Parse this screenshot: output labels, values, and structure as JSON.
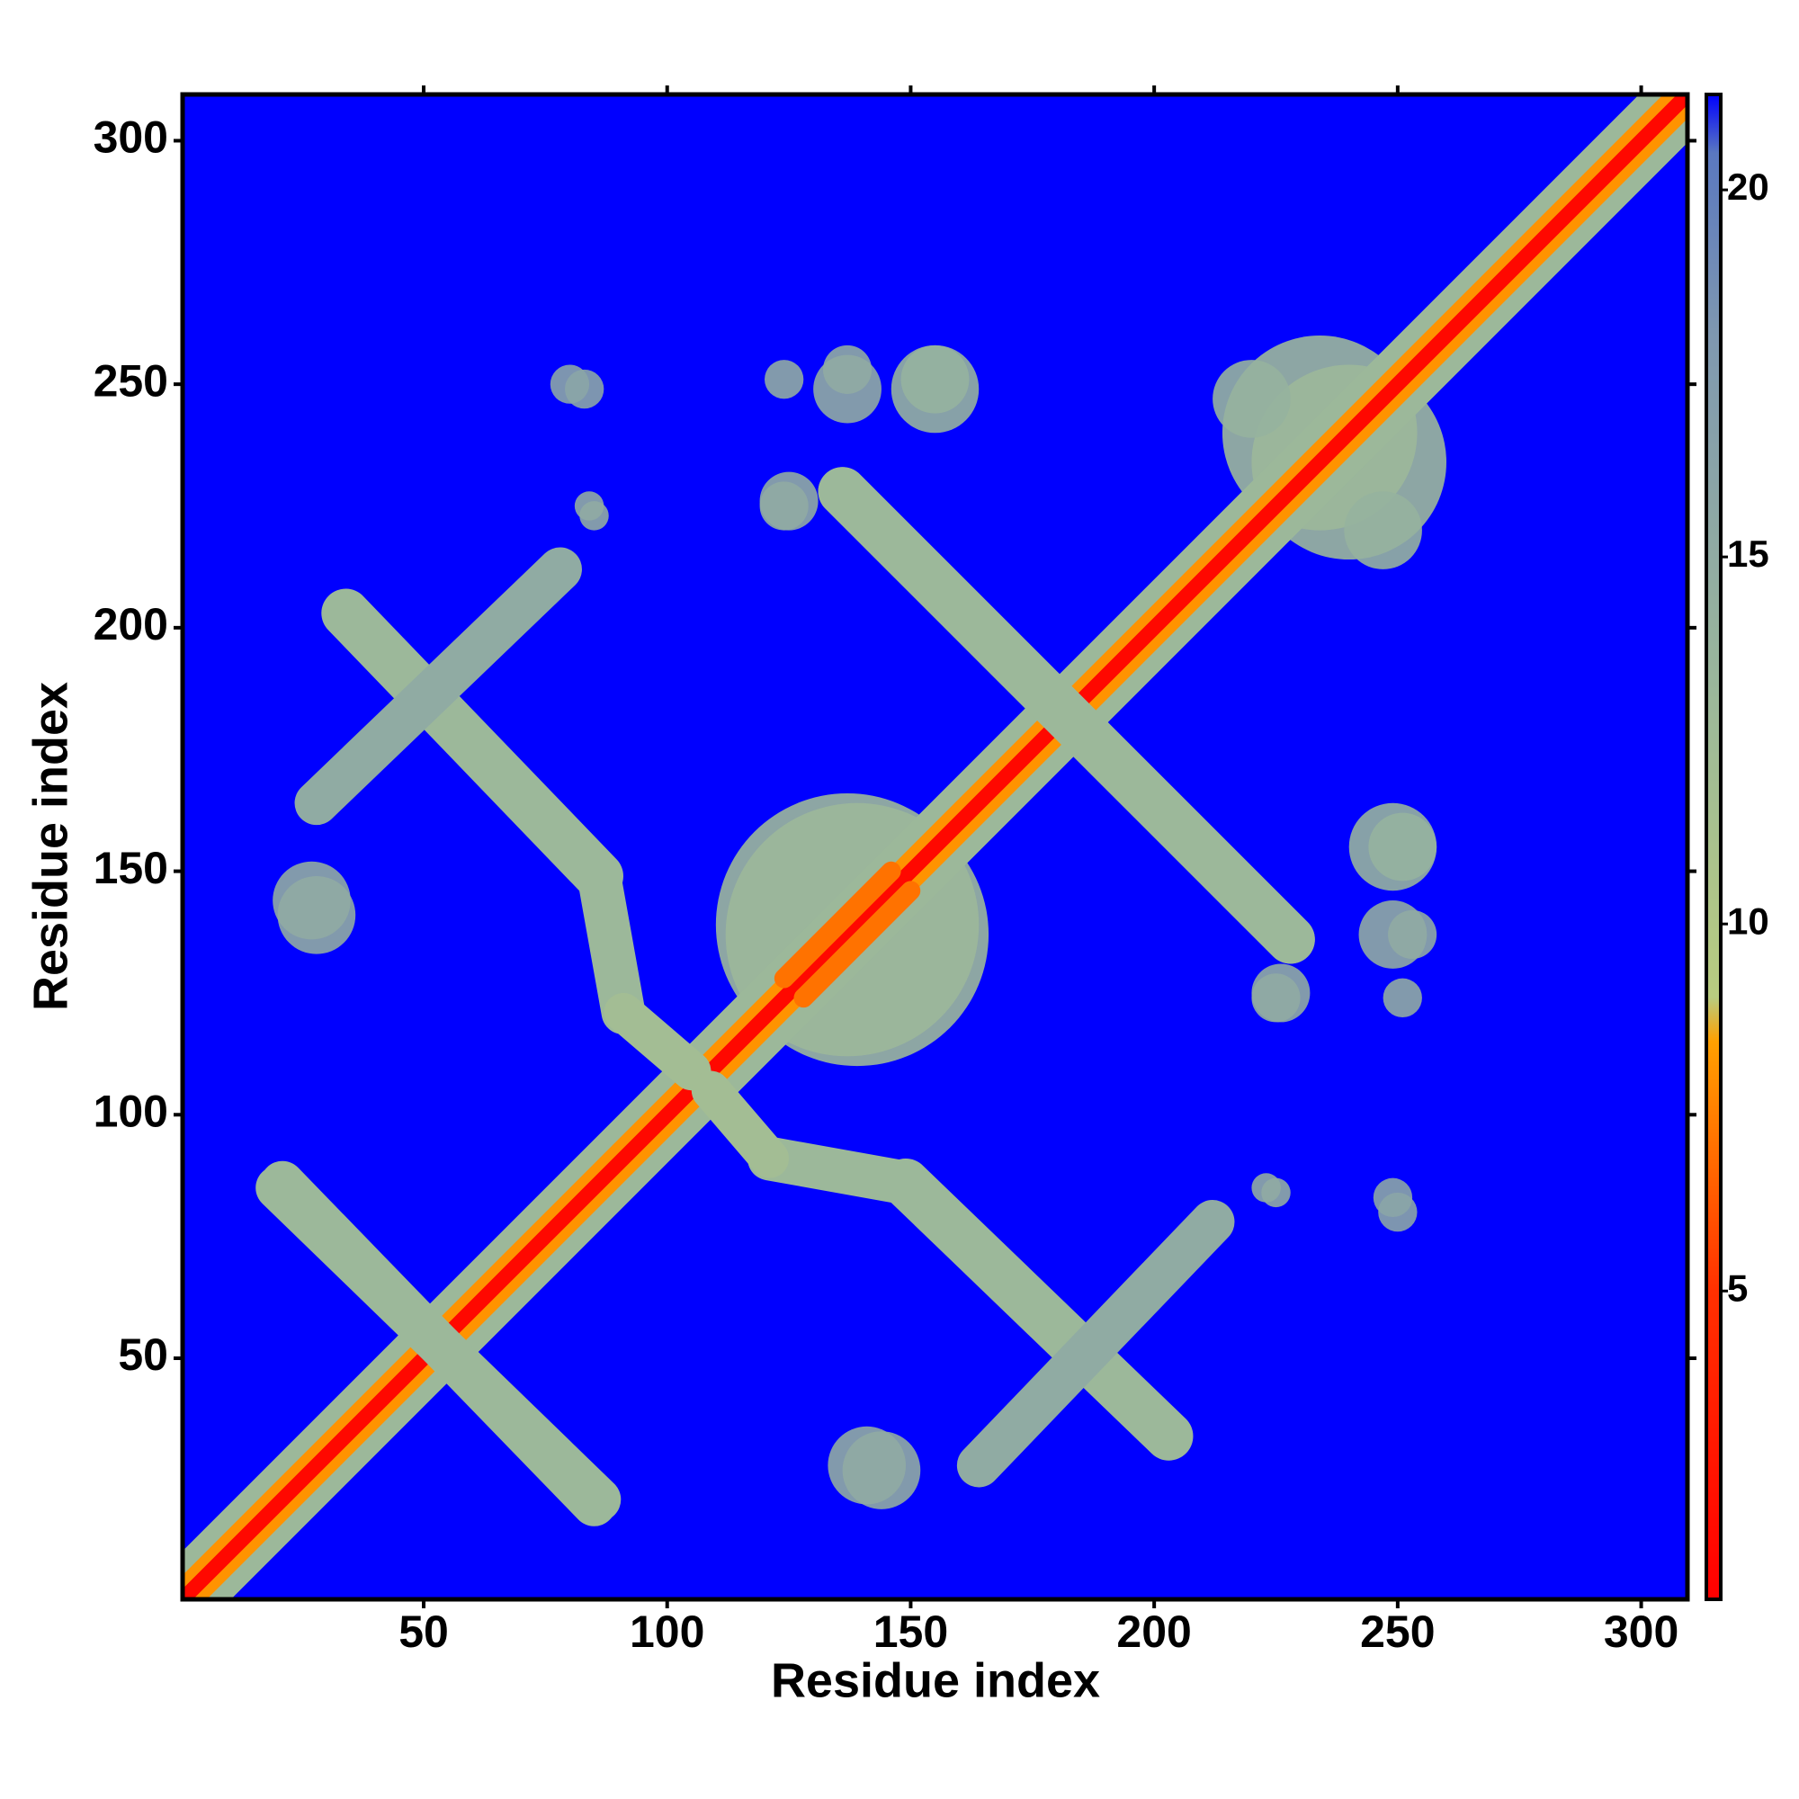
{
  "chart_data": {
    "type": "heatmap",
    "xlabel": "Residue index",
    "ylabel": "Residue index",
    "xlim": [
      0.5,
      309.5
    ],
    "ylim": [
      0.5,
      309.5
    ],
    "xticks": [
      50,
      100,
      150,
      200,
      250,
      300
    ],
    "yticks": [
      50,
      100,
      150,
      200,
      250,
      300
    ],
    "colorbar_lim": [
      0.8,
      21.3
    ],
    "colorbar_ticks": [
      5,
      10,
      15,
      20
    ],
    "colorscale": [
      [
        0.8,
        "#ff0000"
      ],
      [
        5,
        "#ff3000"
      ],
      [
        8.4,
        "#ffa000"
      ],
      [
        9,
        "#b8cc80"
      ],
      [
        13,
        "#9cb89a"
      ],
      [
        18,
        "#7f98b0"
      ],
      [
        20.5,
        "#5a78c0"
      ],
      [
        21.3,
        "#0000ff"
      ]
    ],
    "background_value": 21.3,
    "symmetric": true,
    "bands": [
      {
        "from": [
          0.5,
          0.5
        ],
        "to": [
          309.5,
          309.5
        ],
        "width": 14,
        "value": 13
      },
      {
        "from": [
          0.5,
          0.5
        ],
        "to": [
          309.5,
          309.5
        ],
        "width": 7,
        "value": 8
      },
      {
        "from": [
          0.5,
          0.5
        ],
        "to": [
          309.5,
          309.5
        ],
        "width": 3,
        "value": 1.5
      },
      {
        "from": [
          20,
          85
        ],
        "to": [
          86,
          21
        ],
        "width": 9,
        "value": 13
      },
      {
        "from": [
          34,
          203
        ],
        "to": [
          86,
          149
        ],
        "width": 10,
        "value": 13
      },
      {
        "from": [
          86,
          149
        ],
        "to": [
          91,
          121
        ],
        "width": 9,
        "value": 13
      },
      {
        "from": [
          91,
          121
        ],
        "to": [
          105,
          109
        ],
        "width": 8,
        "value": 12
      },
      {
        "from": [
          136,
          228
        ],
        "to": [
          228,
          136
        ],
        "width": 10,
        "value": 13
      },
      {
        "from": [
          164,
          28
        ],
        "to": [
          212,
          78
        ],
        "width": 9,
        "value": 15
      },
      {
        "from": [
          124,
          128
        ],
        "to": [
          146,
          150
        ],
        "width": 4,
        "value": 7
      }
    ],
    "blobs": [
      {
        "center": [
          137,
          139
        ],
        "radius": 27,
        "value": 13
      },
      {
        "center": [
          234,
          240
        ],
        "radius": 20,
        "value": 13
      },
      {
        "center": [
          247,
          220
        ],
        "radius": 8,
        "value": 14
      },
      {
        "center": [
          249,
          155
        ],
        "radius": 9,
        "value": 14
      },
      {
        "center": [
          249,
          137
        ],
        "radius": 7,
        "value": 15
      },
      {
        "center": [
          226,
          125
        ],
        "radius": 6,
        "value": 15
      },
      {
        "center": [
          223,
          85
        ],
        "radius": 3,
        "value": 15
      },
      {
        "center": [
          249,
          83
        ],
        "radius": 4,
        "value": 16
      },
      {
        "center": [
          124,
          251
        ],
        "radius": 4,
        "value": 15
      },
      {
        "center": [
          137,
          253
        ],
        "radius": 5,
        "value": 15
      },
      {
        "center": [
          155,
          251
        ],
        "radius": 7,
        "value": 14
      },
      {
        "center": [
          80,
          250
        ],
        "radius": 4,
        "value": 16
      },
      {
        "center": [
          124,
          225
        ],
        "radius": 5,
        "value": 15
      },
      {
        "center": [
          84,
          225
        ],
        "radius": 3,
        "value": 15
      },
      {
        "center": [
          27,
          144
        ],
        "radius": 8,
        "value": 15
      },
      {
        "center": [
          141,
          28
        ],
        "radius": 8,
        "value": 15
      }
    ]
  }
}
